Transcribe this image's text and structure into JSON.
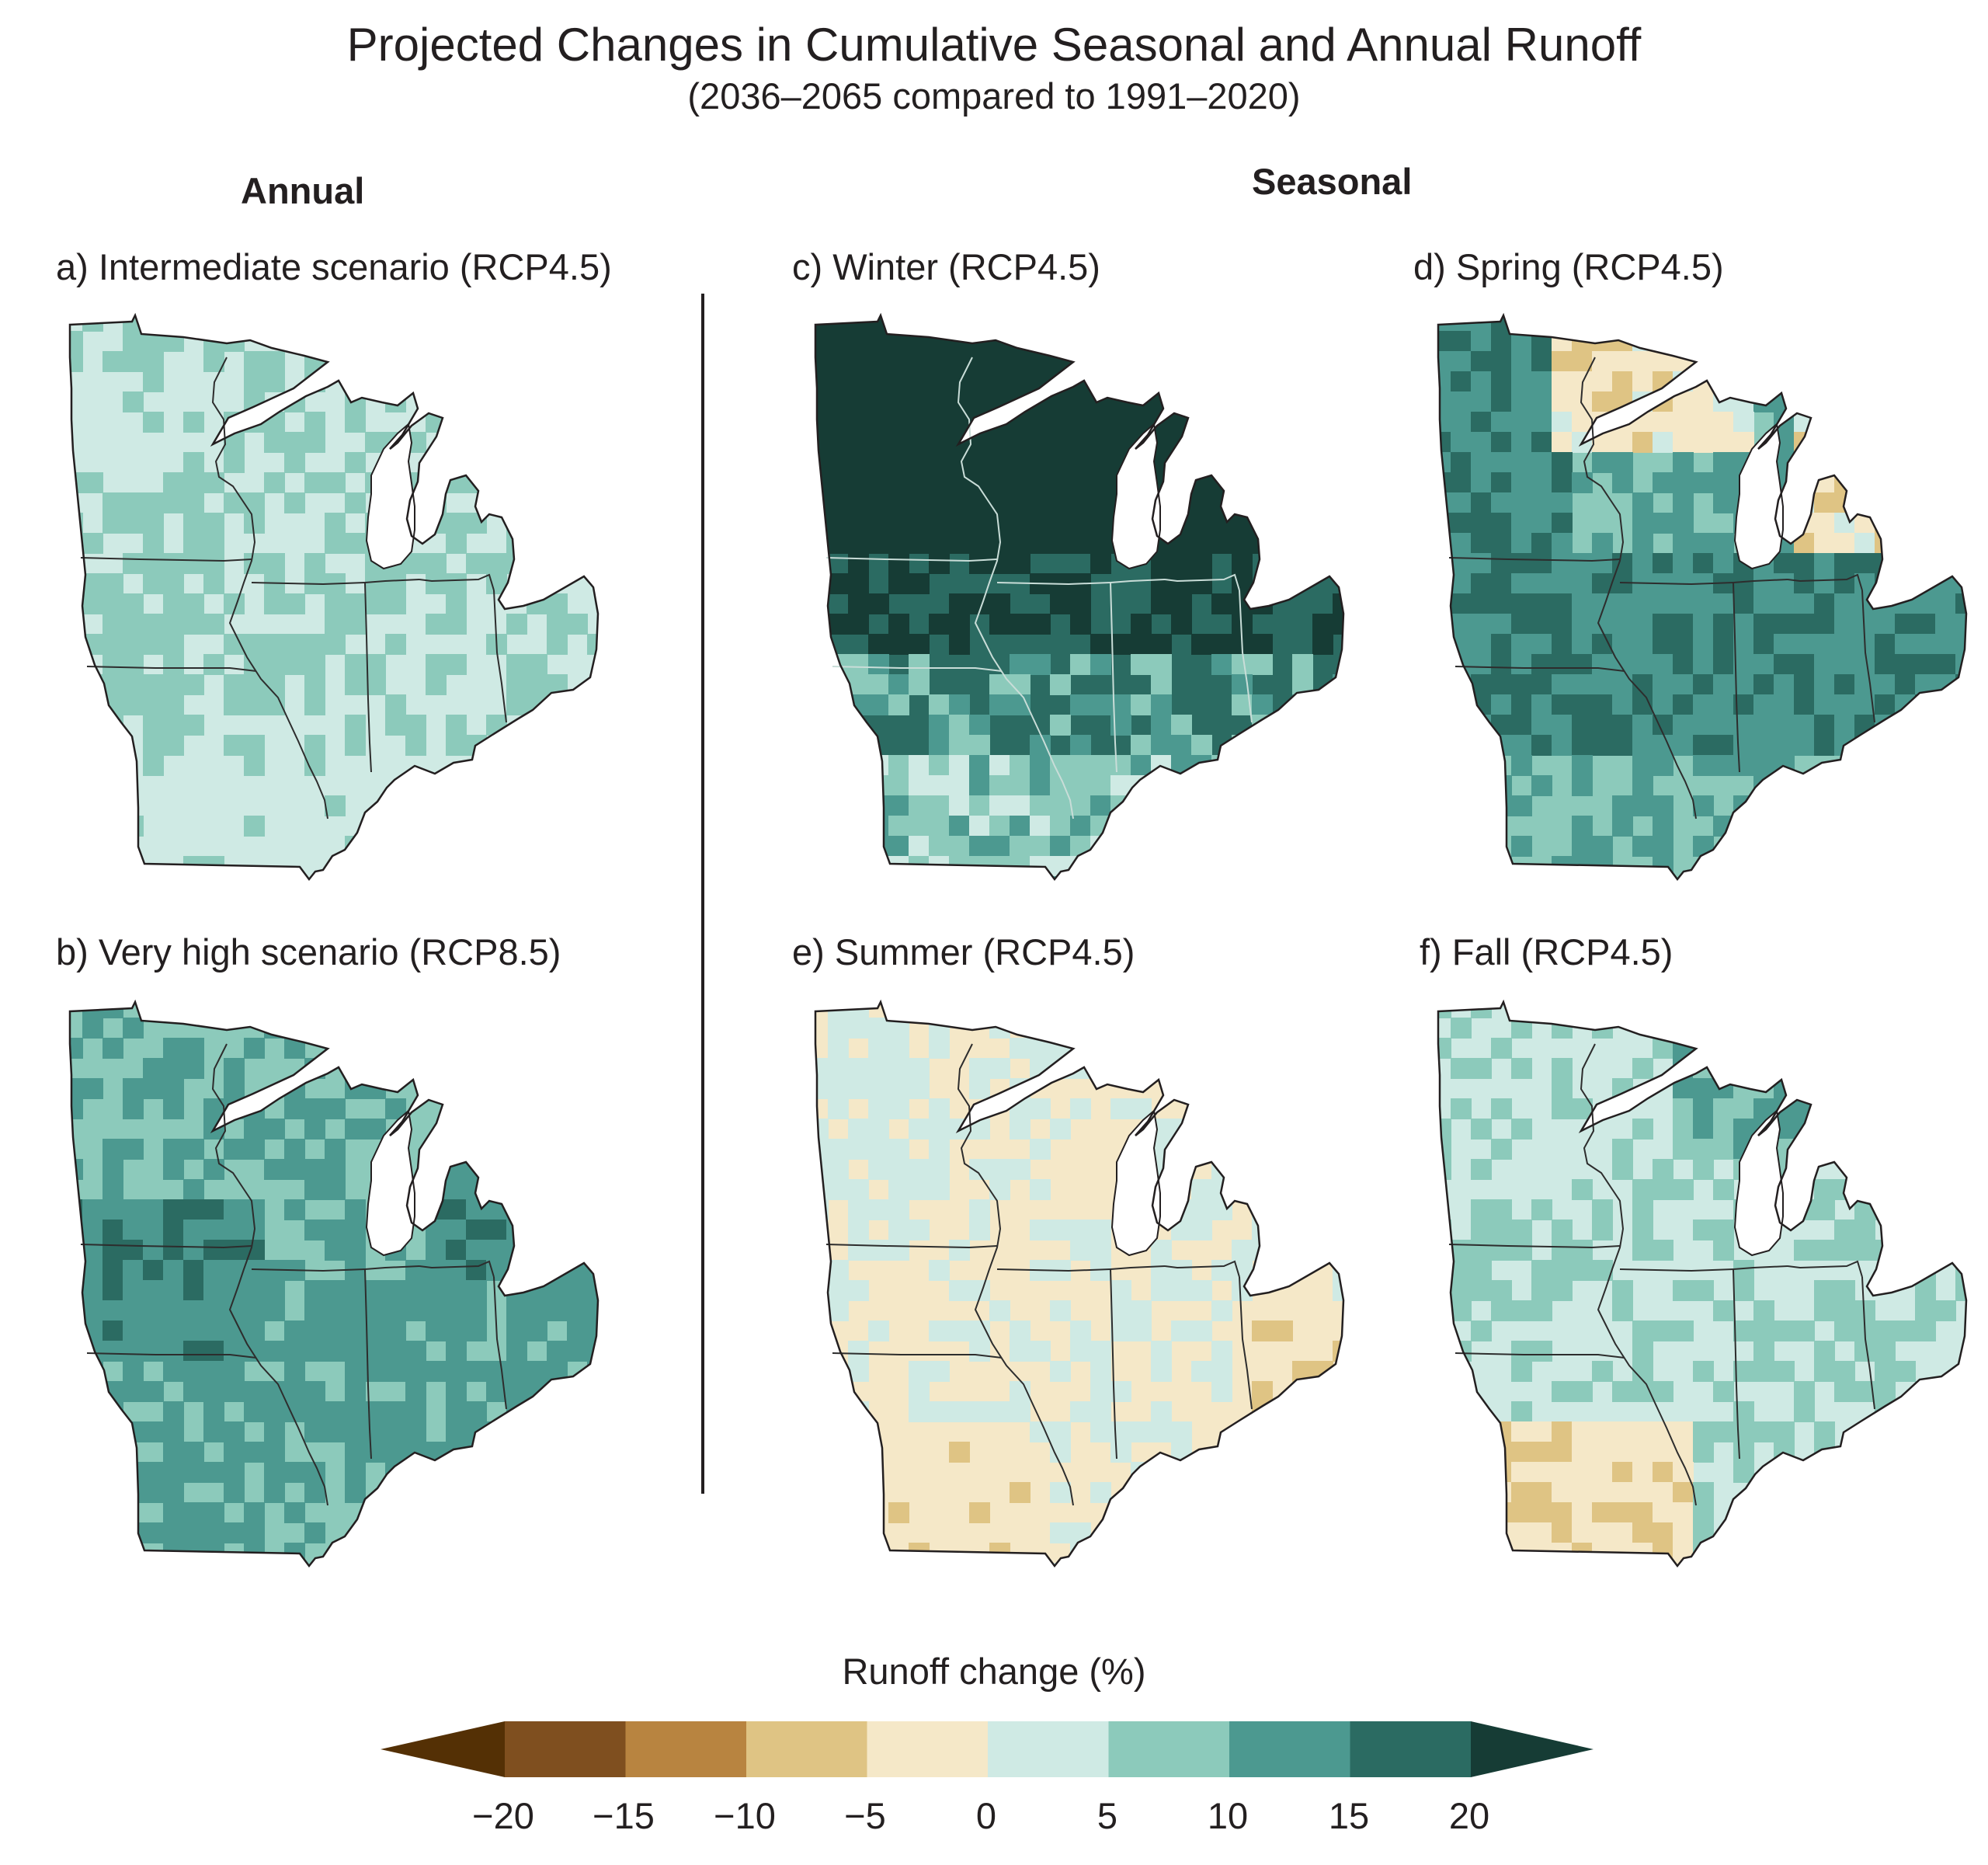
{
  "header": {
    "title": "Projected Changes in Cumulative Seasonal and Annual Runoff",
    "subtitle": "(2036–2065 compared to 1991–2020)"
  },
  "sections": {
    "annual": "Annual",
    "seasonal": "Seasonal"
  },
  "panels": [
    {
      "label": "a) Intermediate scenario (RCP4.5)",
      "base_class": 1,
      "pattern": "annual45"
    },
    {
      "label": "b) Very high scenario (RCP8.5)",
      "base_class": 2,
      "pattern": "annual85"
    },
    {
      "label": "c) Winter (RCP4.5)",
      "base_class": 4,
      "pattern": "winter"
    },
    {
      "label": "d) Spring (RCP4.5)",
      "base_class": 2,
      "pattern": "spring"
    },
    {
      "label": "e) Summer (RCP4.5)",
      "base_class": 0,
      "pattern": "summer"
    },
    {
      "label": "f) Fall (RCP4.5)",
      "base_class": 1,
      "pattern": "fall"
    }
  ],
  "legend": {
    "title": "Runoff change (%)",
    "ticks": [
      "−20",
      "−15",
      "−10",
      "−5",
      "0",
      "5",
      "10",
      "15",
      "20"
    ],
    "colors": {
      "below_-20": "#543005",
      "-20_-15": "#7f4f1f",
      "-15_-10": "#b88440",
      "-10_-5": "#dfc484",
      "-5_0": "#f5e8c8",
      "0_5": "#cfeae4",
      "5_10": "#8ccabb",
      "10_15": "#4c9990",
      "15_20": "#2b6b62",
      "above_20": "#163c35"
    }
  }
}
